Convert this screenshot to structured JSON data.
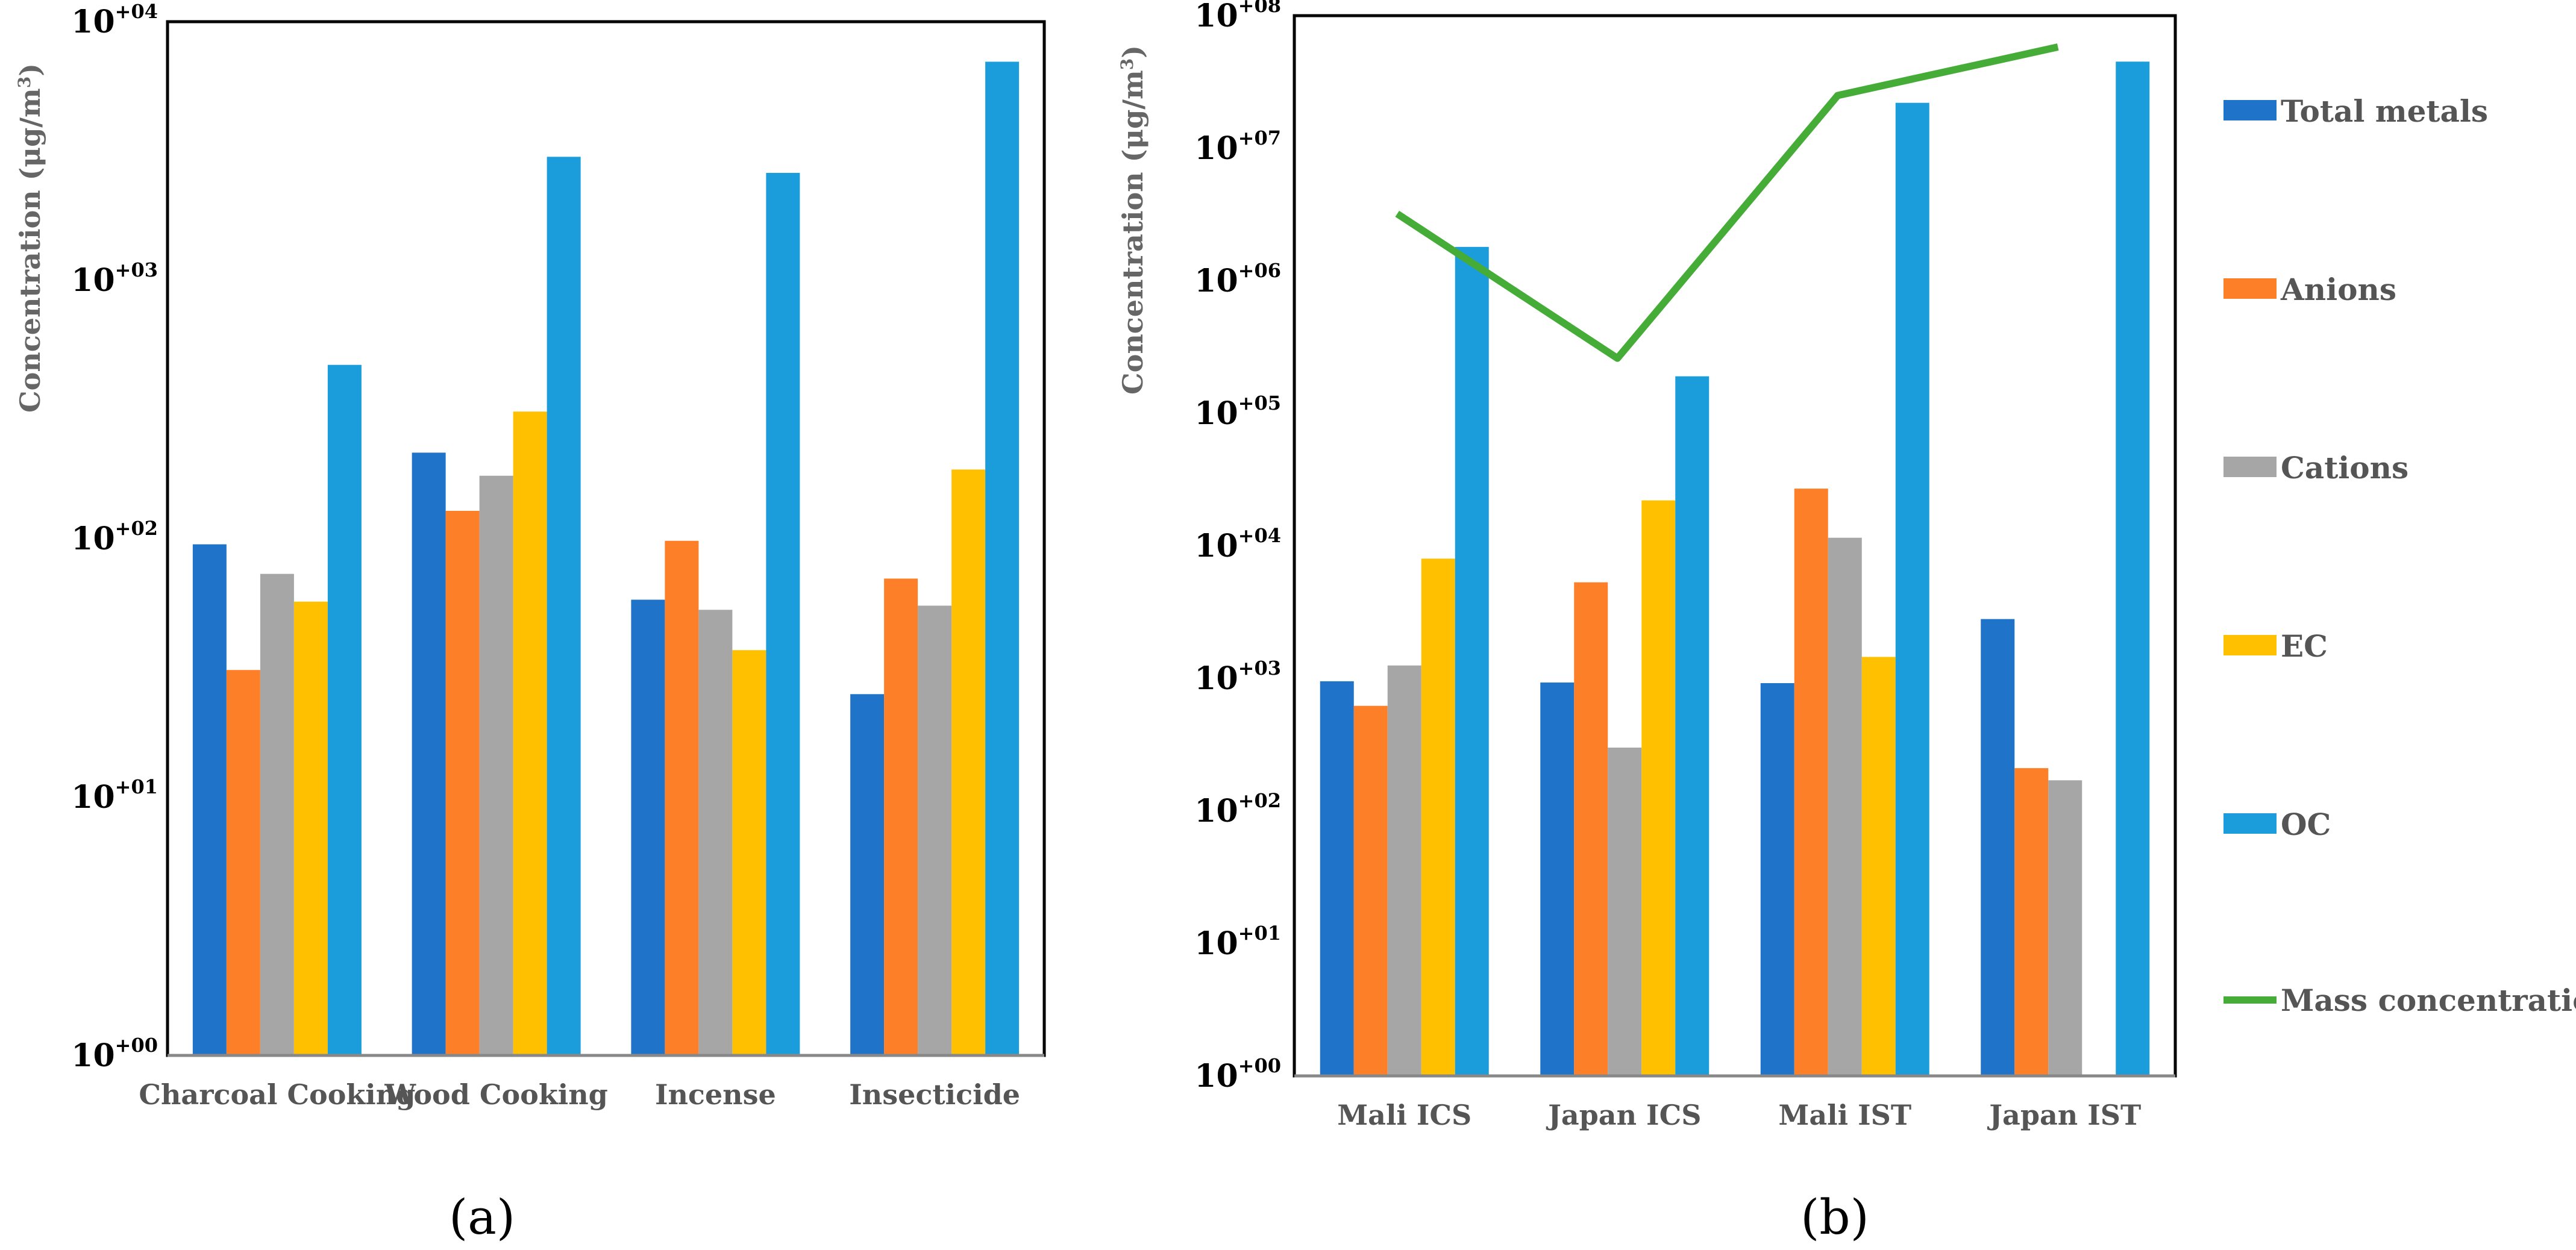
{
  "series_names": [
    "Total metals",
    "Anions",
    "Cations",
    "EC",
    "OC",
    "Mass concentration"
  ],
  "colors": {
    "total_metals": "#1f73c9",
    "anions": "#fd7f28",
    "cations": "#a6a6a6",
    "ec": "#ffc000",
    "oc": "#1b9ddb",
    "mass": "#45ad37"
  },
  "chart_data": [
    {
      "type": "bar",
      "panel_label": "(a)",
      "ylabel": "Concentration (μg/m",
      "ylabel_sup": "3",
      "ylabel_close": ")",
      "yscale": "log",
      "ylim": [
        1,
        10000
      ],
      "yticks": [
        {
          "base": "10",
          "exp": "+00"
        },
        {
          "base": "10",
          "exp": "+01"
        },
        {
          "base": "10",
          "exp": "+02"
        },
        {
          "base": "10",
          "exp": "+03"
        },
        {
          "base": "10",
          "exp": "+04"
        }
      ],
      "categories": [
        "Charcoal Cooking",
        "Wood Cooking",
        "Incense",
        "Insecticide"
      ],
      "series": [
        {
          "name": "Total metals",
          "values": [
            95,
            215,
            58,
            25
          ]
        },
        {
          "name": "Anions",
          "values": [
            31,
            128,
            98,
            70
          ]
        },
        {
          "name": "Cations",
          "values": [
            73,
            175,
            53,
            55
          ]
        },
        {
          "name": "EC",
          "values": [
            57,
            310,
            37,
            185
          ]
        },
        {
          "name": "OC",
          "values": [
            470,
            3000,
            2600,
            7000
          ]
        }
      ]
    },
    {
      "type": "bar",
      "panel_label": "(b)",
      "ylabel": "Concentration (μg/m",
      "ylabel_sup": "3",
      "ylabel_close": ")",
      "yscale": "log",
      "ylim": [
        1,
        100000000
      ],
      "yticks": [
        {
          "base": "10",
          "exp": "+00"
        },
        {
          "base": "10",
          "exp": "+01"
        },
        {
          "base": "10",
          "exp": "+02"
        },
        {
          "base": "10",
          "exp": "+03"
        },
        {
          "base": "10",
          "exp": "+04"
        },
        {
          "base": "10",
          "exp": "+05"
        },
        {
          "base": "10",
          "exp": "+06"
        },
        {
          "base": "10",
          "exp": "+07"
        },
        {
          "base": "10",
          "exp": "+08"
        }
      ],
      "categories": [
        "Mali ICS",
        "Japan ICS",
        "Mali IST",
        "Japan IST"
      ],
      "series": [
        {
          "name": "Total metals",
          "values": [
            950,
            930,
            920,
            2800
          ]
        },
        {
          "name": "Anions",
          "values": [
            620,
            5300,
            27000,
            210
          ]
        },
        {
          "name": "Cations",
          "values": [
            1250,
            300,
            11500,
            170
          ]
        },
        {
          "name": "EC",
          "values": [
            8000,
            22000,
            1450,
            null
          ]
        },
        {
          "name": "OC",
          "values": [
            1800000,
            190000,
            22000000,
            45000000
          ]
        }
      ],
      "line_series": {
        "name": "Mass concentration",
        "values": [
          3200000,
          260000,
          25000000,
          58000000
        ]
      },
      "legend_position": "right"
    }
  ]
}
